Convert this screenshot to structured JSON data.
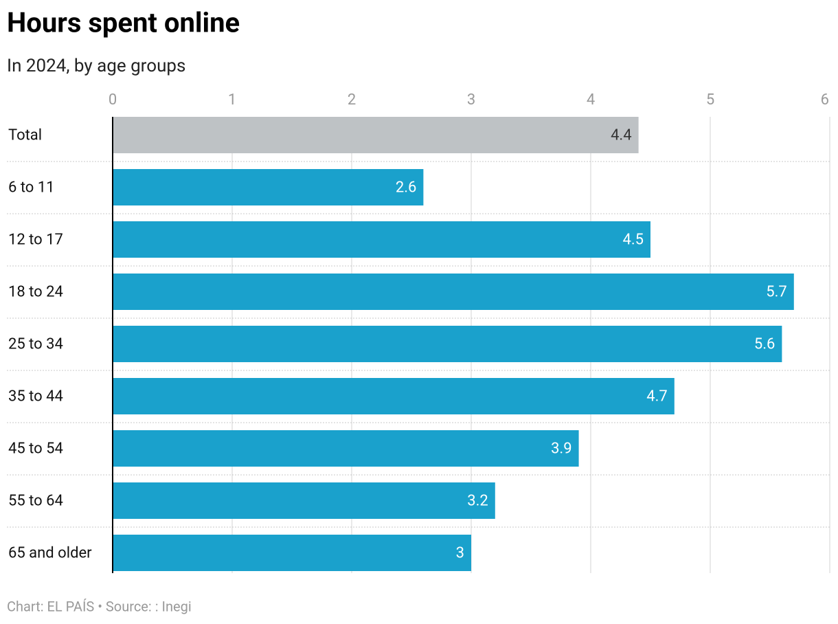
{
  "chart_data": {
    "type": "bar",
    "orientation": "horizontal",
    "title": "Hours spent online",
    "subtitle": "In 2024, by age groups",
    "caption": "Chart: EL PAÍS • Source: : Inegi",
    "categories": [
      "Total",
      "6 to 11",
      "12 to 17",
      "18 to 24",
      "25 to 34",
      "35 to 44",
      "45 to 54",
      "55 to 64",
      "65 and older"
    ],
    "values": [
      4.4,
      2.6,
      4.5,
      5.7,
      5.6,
      4.7,
      3.9,
      3.2,
      3
    ],
    "colors": [
      "#bec2c5",
      "#1aa1cc",
      "#1aa1cc",
      "#1aa1cc",
      "#1aa1cc",
      "#1aa1cc",
      "#1aa1cc",
      "#1aa1cc",
      "#1aa1cc"
    ],
    "xlim": [
      0,
      6
    ],
    "xticks": [
      0,
      1,
      2,
      3,
      4,
      5,
      6
    ],
    "grid": true
  }
}
